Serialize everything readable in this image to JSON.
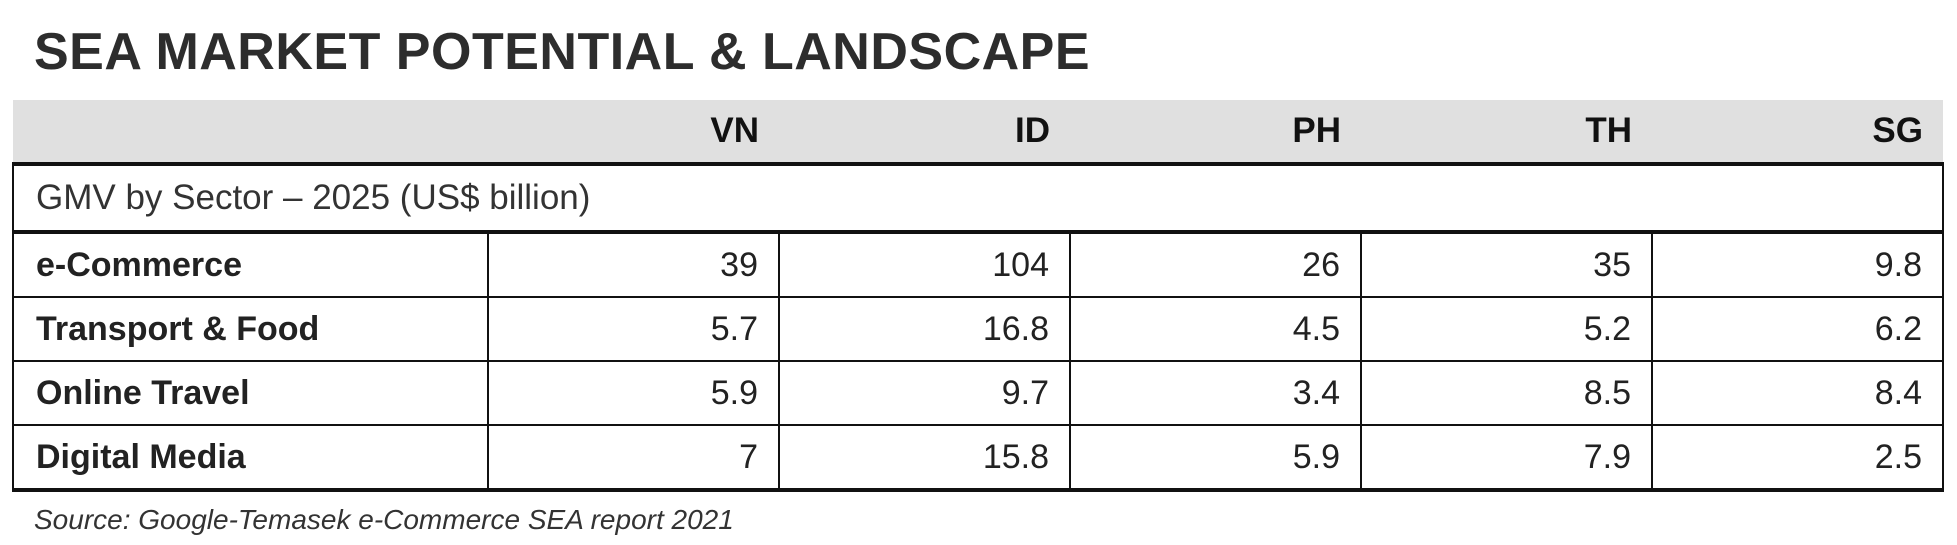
{
  "title": "SEA MARKET POTENTIAL & LANDSCAPE",
  "table": {
    "columns": [
      "",
      "VN",
      "ID",
      "PH",
      "TH",
      "SG"
    ],
    "section_label": "GMV by Sector – 2025 (US$ billion)",
    "rows": [
      {
        "label": "e-Commerce",
        "values": [
          "39",
          "104",
          "26",
          "35",
          "9.8"
        ]
      },
      {
        "label": "Transport & Food",
        "values": [
          "5.7",
          "16.8",
          "4.5",
          "5.2",
          "6.2"
        ]
      },
      {
        "label": "Online Travel",
        "values": [
          "5.9",
          "9.7",
          "3.4",
          "8.5",
          "8.4"
        ]
      },
      {
        "label": "Digital Media",
        "values": [
          "7",
          "15.8",
          "5.9",
          "7.9",
          "2.5"
        ]
      }
    ]
  },
  "source": "Source: Google-Temasek e-Commerce SEA report 2021",
  "colors": {
    "header_bg": "#e0e0e0",
    "text": "#2b2b2b",
    "border": "#111111"
  }
}
